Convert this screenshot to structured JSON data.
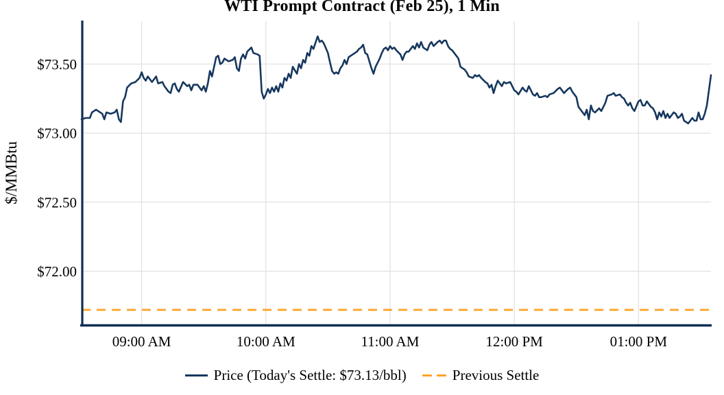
{
  "title": "WTI Prompt Contract (Feb 25), 1 Min",
  "y_axis": {
    "label": "$/MMBtu"
  },
  "legend": {
    "price_label": "Price (Today's Settle: $73.13/bbl)",
    "previous_settle_label": "Previous Settle"
  },
  "colors": {
    "price_line": "#16375e",
    "previous_settle_line": "#ffa223",
    "gridline": "#e0e0e0",
    "axis": "#0f2e52"
  },
  "chart_data": {
    "type": "line",
    "title": "WTI Prompt Contract (Feb 25), 1 Min",
    "xlabel": "",
    "ylabel": "$/MMBtu",
    "grid": true,
    "legend_position": "bottom",
    "x_range": [
      "08:31",
      "13:35"
    ],
    "ylim": [
      71.61,
      73.81
    ],
    "y_ticks": [
      {
        "label": "$73.50",
        "value": 73.5
      },
      {
        "label": "$73.00",
        "value": 73.0
      },
      {
        "label": "$72.50",
        "value": 72.5
      },
      {
        "label": "$72.00",
        "value": 72.0
      }
    ],
    "x_ticks": [
      {
        "label": "09:00 AM",
        "time": "09:00"
      },
      {
        "label": "10:00 AM",
        "time": "10:00"
      },
      {
        "label": "11:00 AM",
        "time": "11:00"
      },
      {
        "label": "12:00 PM",
        "time": "12:00"
      },
      {
        "label": "01:00 PM",
        "time": "13:00"
      }
    ],
    "todays_settle": 73.13,
    "previous_settle": 71.72,
    "series": [
      {
        "name": "Price",
        "color": "#16375e",
        "style": "solid",
        "points": [
          [
            "08:31",
            73.1
          ],
          [
            "08:33",
            73.11
          ],
          [
            "08:35",
            73.11
          ],
          [
            "08:36",
            73.15
          ],
          [
            "08:38",
            73.17
          ],
          [
            "08:40",
            73.15
          ],
          [
            "08:41",
            73.14
          ],
          [
            "08:42",
            73.1
          ],
          [
            "08:43",
            73.15
          ],
          [
            "08:45",
            73.14
          ],
          [
            "08:47",
            73.15
          ],
          [
            "08:48",
            73.17
          ],
          [
            "08:49",
            73.1
          ],
          [
            "08:50",
            73.08
          ],
          [
            "08:51",
            73.23
          ],
          [
            "08:52",
            73.26
          ],
          [
            "08:53",
            73.33
          ],
          [
            "08:55",
            73.36
          ],
          [
            "08:57",
            73.37
          ],
          [
            "08:59",
            73.4
          ],
          [
            "09:00",
            73.44
          ],
          [
            "09:01",
            73.4
          ],
          [
            "09:02",
            73.38
          ],
          [
            "09:03",
            73.41
          ],
          [
            "09:05",
            73.37
          ],
          [
            "09:07",
            73.41
          ],
          [
            "09:08",
            73.36
          ],
          [
            "09:10",
            73.37
          ],
          [
            "09:11",
            73.34
          ],
          [
            "09:13",
            73.3
          ],
          [
            "09:14",
            73.29
          ],
          [
            "09:15",
            73.35
          ],
          [
            "09:16",
            73.36
          ],
          [
            "09:17",
            73.32
          ],
          [
            "09:18",
            73.3
          ],
          [
            "09:20",
            73.37
          ],
          [
            "09:22",
            73.34
          ],
          [
            "09:23",
            73.35
          ],
          [
            "09:24",
            73.31
          ],
          [
            "09:25",
            73.35
          ],
          [
            "09:27",
            73.35
          ],
          [
            "09:28",
            73.33
          ],
          [
            "09:29",
            73.31
          ],
          [
            "09:30",
            73.34
          ],
          [
            "09:31",
            73.3
          ],
          [
            "09:32",
            73.36
          ],
          [
            "09:33",
            73.45
          ],
          [
            "09:34",
            73.41
          ],
          [
            "09:36",
            73.55
          ],
          [
            "09:37",
            73.56
          ],
          [
            "09:38",
            73.5
          ],
          [
            "09:39",
            73.51
          ],
          [
            "09:40",
            73.54
          ],
          [
            "09:42",
            73.52
          ],
          [
            "09:44",
            73.53
          ],
          [
            "09:45",
            73.55
          ],
          [
            "09:46",
            73.47
          ],
          [
            "09:47",
            73.45
          ],
          [
            "09:48",
            73.54
          ],
          [
            "09:49",
            73.57
          ],
          [
            "09:50",
            73.54
          ],
          [
            "09:51",
            73.59
          ],
          [
            "09:53",
            73.62
          ],
          [
            "09:54",
            73.58
          ],
          [
            "09:56",
            73.57
          ],
          [
            "09:57",
            73.56
          ],
          [
            "09:58",
            73.3
          ],
          [
            "09:59",
            73.25
          ],
          [
            "10:00",
            73.28
          ],
          [
            "10:01",
            73.32
          ],
          [
            "10:02",
            73.29
          ],
          [
            "10:03",
            73.33
          ],
          [
            "10:04",
            73.3
          ],
          [
            "10:05",
            73.34
          ],
          [
            "10:06",
            73.3
          ],
          [
            "10:07",
            73.36
          ],
          [
            "10:08",
            73.33
          ],
          [
            "10:09",
            73.4
          ],
          [
            "10:10",
            73.38
          ],
          [
            "10:11",
            73.43
          ],
          [
            "10:12",
            73.4
          ],
          [
            "10:13",
            73.48
          ],
          [
            "10:15",
            73.43
          ],
          [
            "10:16",
            73.5
          ],
          [
            "10:17",
            73.47
          ],
          [
            "10:18",
            73.53
          ],
          [
            "10:19",
            73.51
          ],
          [
            "10:20",
            73.58
          ],
          [
            "10:21",
            73.56
          ],
          [
            "10:22",
            73.63
          ],
          [
            "10:23",
            73.61
          ],
          [
            "10:25",
            73.7
          ],
          [
            "10:26",
            73.66
          ],
          [
            "10:27",
            73.67
          ],
          [
            "10:28",
            73.65
          ],
          [
            "10:30",
            73.58
          ],
          [
            "10:31",
            73.51
          ],
          [
            "10:32",
            73.45
          ],
          [
            "10:33",
            73.43
          ],
          [
            "10:34",
            73.44
          ],
          [
            "10:35",
            73.43
          ],
          [
            "10:36",
            73.47
          ],
          [
            "10:37",
            73.49
          ],
          [
            "10:38",
            73.53
          ],
          [
            "10:39",
            73.5
          ],
          [
            "10:40",
            73.55
          ],
          [
            "10:41",
            73.56
          ],
          [
            "10:43",
            73.58
          ],
          [
            "10:44",
            73.59
          ],
          [
            "10:45",
            73.61
          ],
          [
            "10:46",
            73.62
          ],
          [
            "10:47",
            73.64
          ],
          [
            "10:48",
            73.58
          ],
          [
            "10:49",
            73.57
          ],
          [
            "10:50",
            73.52
          ],
          [
            "10:51",
            73.47
          ],
          [
            "10:52",
            73.43
          ],
          [
            "10:53",
            73.48
          ],
          [
            "10:55",
            73.54
          ],
          [
            "10:56",
            73.58
          ],
          [
            "10:57",
            73.61
          ],
          [
            "10:58",
            73.62
          ],
          [
            "10:59",
            73.6
          ],
          [
            "11:00",
            73.63
          ],
          [
            "11:01",
            73.61
          ],
          [
            "11:02",
            73.62
          ],
          [
            "11:03",
            73.6
          ],
          [
            "11:05",
            73.57
          ],
          [
            "11:06",
            73.53
          ],
          [
            "11:07",
            73.57
          ],
          [
            "11:08",
            73.59
          ],
          [
            "11:09",
            73.59
          ],
          [
            "11:11",
            73.63
          ],
          [
            "11:12",
            73.61
          ],
          [
            "11:13",
            73.65
          ],
          [
            "11:14",
            73.62
          ],
          [
            "11:15",
            73.66
          ],
          [
            "11:16",
            73.62
          ],
          [
            "11:18",
            73.6
          ],
          [
            "11:19",
            73.64
          ],
          [
            "11:20",
            73.66
          ],
          [
            "11:21",
            73.63
          ],
          [
            "11:23",
            73.66
          ],
          [
            "11:24",
            73.67
          ],
          [
            "11:25",
            73.65
          ],
          [
            "11:26",
            73.67
          ],
          [
            "11:27",
            73.67
          ],
          [
            "11:28",
            73.63
          ],
          [
            "11:29",
            73.61
          ],
          [
            "11:30",
            73.6
          ],
          [
            "11:32",
            73.56
          ],
          [
            "11:33",
            73.54
          ],
          [
            "11:34",
            73.48
          ],
          [
            "11:36",
            73.46
          ],
          [
            "11:37",
            73.44
          ],
          [
            "11:38",
            73.41
          ],
          [
            "11:40",
            73.4
          ],
          [
            "11:41",
            73.42
          ],
          [
            "11:42",
            73.41
          ],
          [
            "11:43",
            73.42
          ],
          [
            "11:44",
            73.4
          ],
          [
            "11:46",
            73.37
          ],
          [
            "11:47",
            73.36
          ],
          [
            "11:48",
            73.33
          ],
          [
            "11:49",
            73.35
          ],
          [
            "11:50",
            73.29
          ],
          [
            "11:51",
            73.34
          ],
          [
            "11:52",
            73.38
          ],
          [
            "11:53",
            73.36
          ],
          [
            "11:54",
            73.34
          ],
          [
            "11:55",
            73.37
          ],
          [
            "11:56",
            73.36
          ],
          [
            "11:58",
            73.37
          ],
          [
            "11:59",
            73.34
          ],
          [
            "12:00",
            73.31
          ],
          [
            "12:01",
            73.3
          ],
          [
            "12:02",
            73.28
          ],
          [
            "12:04",
            73.33
          ],
          [
            "12:05",
            73.31
          ],
          [
            "12:06",
            73.3
          ],
          [
            "12:07",
            73.34
          ],
          [
            "12:09",
            73.28
          ],
          [
            "12:10",
            73.27
          ],
          [
            "12:11",
            73.29
          ],
          [
            "12:12",
            73.26
          ],
          [
            "12:13",
            73.26
          ],
          [
            "12:15",
            73.27
          ],
          [
            "12:16",
            73.26
          ],
          [
            "12:17",
            73.28
          ],
          [
            "12:19",
            73.29
          ],
          [
            "12:21",
            73.32
          ],
          [
            "12:22",
            73.33
          ],
          [
            "12:24",
            73.29
          ],
          [
            "12:26",
            73.32
          ],
          [
            "12:27",
            73.33
          ],
          [
            "12:28",
            73.3
          ],
          [
            "12:30",
            73.26
          ],
          [
            "12:31",
            73.19
          ],
          [
            "12:33",
            73.15
          ],
          [
            "12:34",
            73.13
          ],
          [
            "12:35",
            73.17
          ],
          [
            "12:36",
            73.1
          ],
          [
            "12:37",
            73.2
          ],
          [
            "12:38",
            73.16
          ],
          [
            "12:39",
            73.15
          ],
          [
            "12:41",
            73.18
          ],
          [
            "12:42",
            73.16
          ],
          [
            "12:44",
            73.22
          ],
          [
            "12:45",
            73.27
          ],
          [
            "12:47",
            73.28
          ],
          [
            "12:48",
            73.29
          ],
          [
            "12:49",
            73.27
          ],
          [
            "12:51",
            73.28
          ],
          [
            "12:52",
            73.26
          ],
          [
            "12:53",
            73.25
          ],
          [
            "12:54",
            73.22
          ],
          [
            "12:55",
            73.2
          ],
          [
            "12:56",
            73.22
          ],
          [
            "12:57",
            73.18
          ],
          [
            "12:58",
            73.16
          ],
          [
            "13:00",
            73.23
          ],
          [
            "13:01",
            73.24
          ],
          [
            "13:02",
            73.2
          ],
          [
            "13:03",
            73.2
          ],
          [
            "13:04",
            73.23
          ],
          [
            "13:06",
            73.19
          ],
          [
            "13:07",
            73.18
          ],
          [
            "13:08",
            73.15
          ],
          [
            "13:09",
            73.1
          ],
          [
            "13:10",
            73.15
          ],
          [
            "13:11",
            73.12
          ],
          [
            "13:12",
            73.16
          ],
          [
            "13:13",
            73.11
          ],
          [
            "13:14",
            73.14
          ],
          [
            "13:15",
            73.11
          ],
          [
            "13:17",
            73.15
          ],
          [
            "13:18",
            73.14
          ],
          [
            "13:19",
            73.11
          ],
          [
            "13:20",
            73.12
          ],
          [
            "13:21",
            73.14
          ],
          [
            "13:22",
            73.09
          ],
          [
            "13:23",
            73.08
          ],
          [
            "13:24",
            73.07
          ],
          [
            "13:26",
            73.11
          ],
          [
            "13:27",
            73.09
          ],
          [
            "13:28",
            73.09
          ],
          [
            "13:29",
            73.15
          ],
          [
            "13:30",
            73.1
          ],
          [
            "13:31",
            73.1
          ],
          [
            "13:32",
            73.14
          ],
          [
            "13:33",
            73.2
          ],
          [
            "13:34",
            73.31
          ],
          [
            "13:35",
            73.42
          ]
        ]
      },
      {
        "name": "Previous Settle",
        "color": "#ffa223",
        "style": "dashed",
        "value": 71.72
      }
    ]
  }
}
